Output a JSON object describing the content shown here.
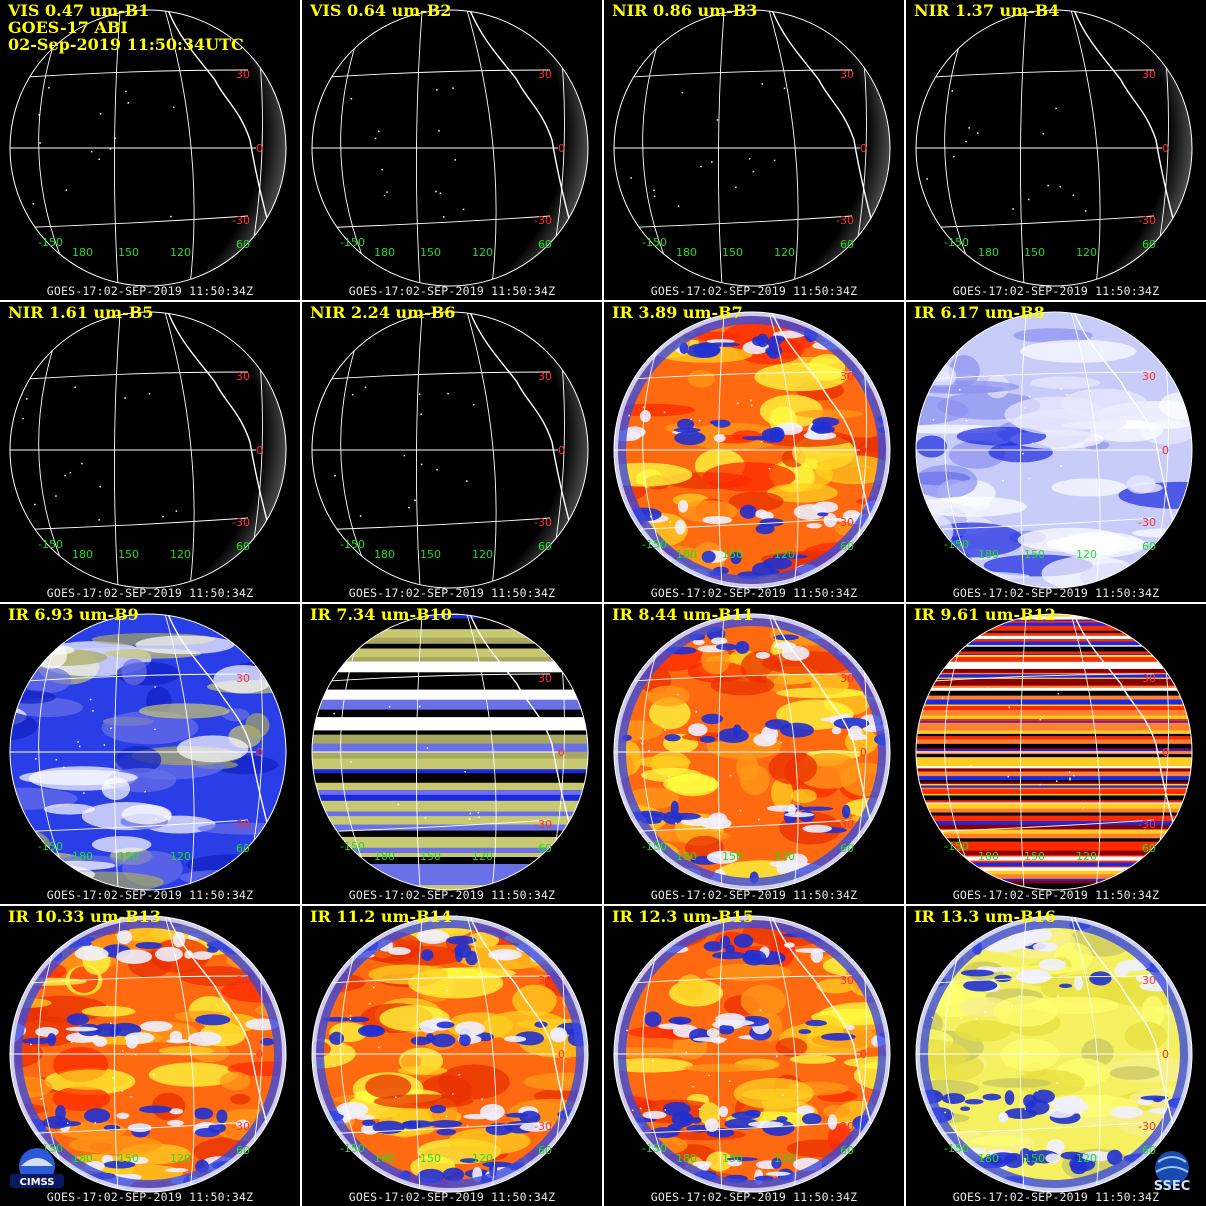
{
  "header": {
    "line2": "GOES-17 ABI",
    "line3": "02-Sep-2019 11:50:34UTC"
  },
  "footer_text": "GOES-17:02-SEP-2019 11:50:34Z",
  "lat_labels": [
    "30",
    "0",
    "-30"
  ],
  "lon_labels": [
    "-150",
    "180",
    "150",
    "120",
    "60"
  ],
  "logos": {
    "left": "CIMSS",
    "right": "SSEC"
  },
  "panels": [
    {
      "label": "VIS 0.47 um-B1",
      "style": "vis"
    },
    {
      "label": "VIS 0.64 um-B2",
      "style": "vis"
    },
    {
      "label": "NIR 0.86 um-B3",
      "style": "vis"
    },
    {
      "label": "NIR 1.37 um-B4",
      "style": "vis"
    },
    {
      "label": "NIR 1.61 um-B5",
      "style": "vis"
    },
    {
      "label": "NIR 2.24 um-B6",
      "style": "vis"
    },
    {
      "label": "IR 3.89 um-B7",
      "style": "ir_warm"
    },
    {
      "label": "IR 6.17 um-B8",
      "style": "wv_light"
    },
    {
      "label": "IR 6.93 um-B9",
      "style": "wv_blue"
    },
    {
      "label": "IR 7.34 um-B10",
      "style": "striped_blue"
    },
    {
      "label": "IR 8.44 um-B11",
      "style": "ir_warm"
    },
    {
      "label": "IR 9.61 um-B12",
      "style": "striped_red"
    },
    {
      "label": "IR 10.33 um-B13",
      "style": "ir_warm"
    },
    {
      "label": "IR 11.2 um-B14",
      "style": "ir_warm"
    },
    {
      "label": "IR 12.3 um-B15",
      "style": "ir_warm"
    },
    {
      "label": "IR 13.3 um-B16",
      "style": "co2_yellow"
    }
  ],
  "colors": {
    "title": "#ffff00",
    "lat_label": "#ff3030",
    "lon_label": "#22dd22",
    "background": "#000000",
    "divider": "#ffffff"
  }
}
